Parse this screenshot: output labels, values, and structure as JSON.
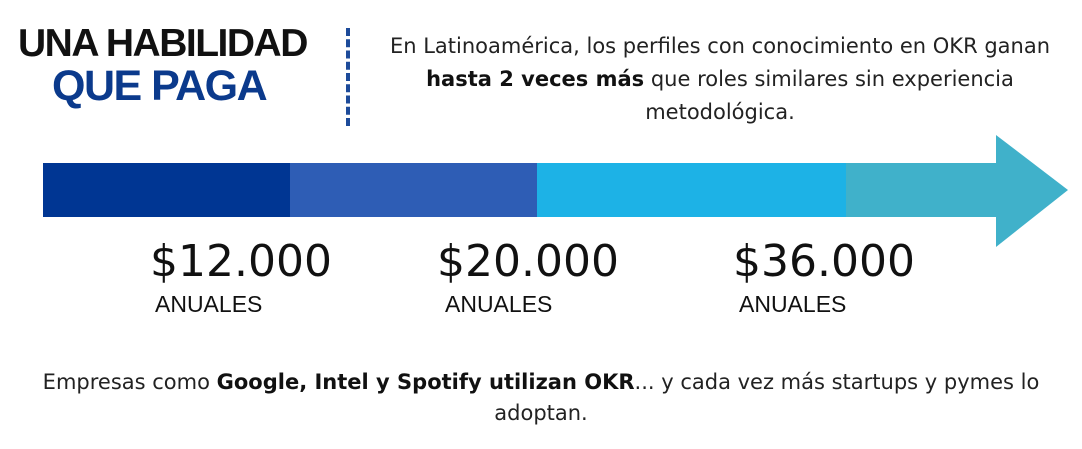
{
  "heading": {
    "line1": "UNA HABILIDAD",
    "line2": "QUE PAGA"
  },
  "intro": {
    "before": "En Latinoamérica, los perfiles con conocimiento en OKR ganan ",
    "bold": "hasta 2 veces más",
    "after": " que roles similares sin experiencia metodológica."
  },
  "arrow": {
    "segment_colors": [
      "#003693",
      "#2e5db5",
      "#1db2e6",
      "#40b1ca"
    ],
    "head_color": "#40b1ca"
  },
  "salaries": [
    {
      "amount": "$12.000",
      "unit": "ANUALES"
    },
    {
      "amount": "$20.000",
      "unit": "ANUALES"
    },
    {
      "amount": "$36.000",
      "unit": "ANUALES"
    }
  ],
  "footer": {
    "before": "Empresas como ",
    "bold": "Google, Intel y Spotify utilizan OKR",
    "after": "... y cada vez más startups y pymes lo adoptan."
  }
}
